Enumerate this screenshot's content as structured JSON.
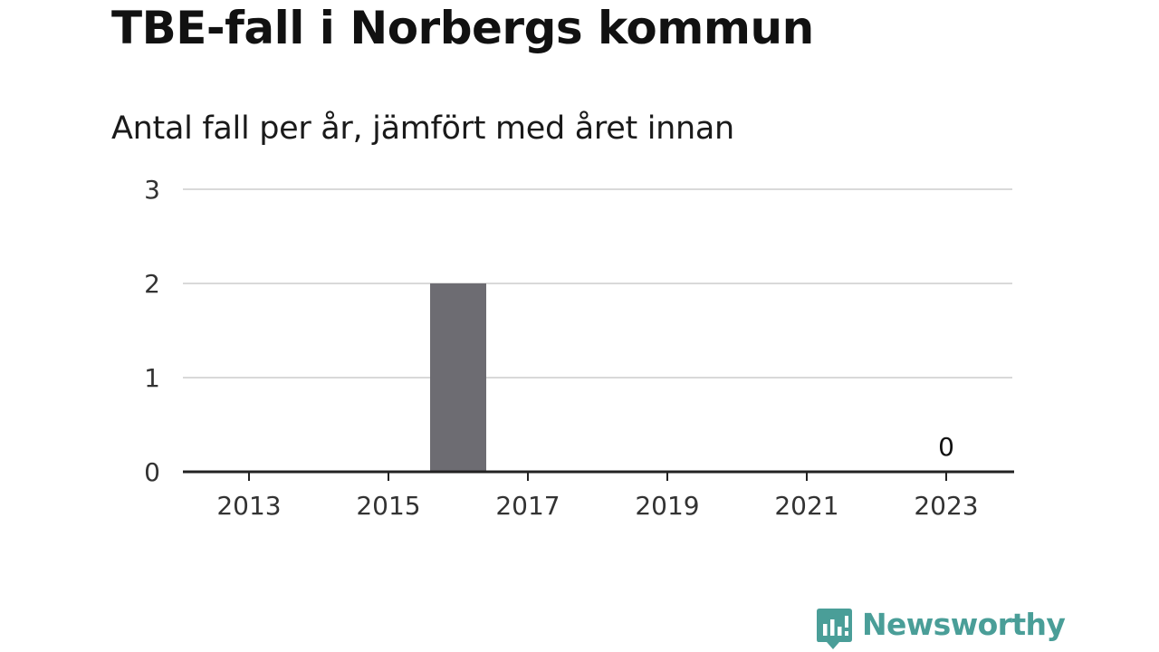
{
  "title": "TBE-fall i Norbergs kommun",
  "subtitle": "Antal fall per år, jämfört med året innan",
  "brand": {
    "name": "Newsworthy",
    "color": "#4a9e98",
    "icon": "newsworthy-logo-icon"
  },
  "colors": {
    "bar": "#6d6c72",
    "grid": "#d9d9d9",
    "axis": "#222222"
  },
  "chart_data": {
    "type": "bar",
    "categories": [
      "2013",
      "2014",
      "2015",
      "2016",
      "2017",
      "2018",
      "2019",
      "2020",
      "2021",
      "2022",
      "2023"
    ],
    "values": [
      0,
      0,
      0,
      2,
      0,
      0,
      0,
      0,
      0,
      0,
      0
    ],
    "x_tick_labels": [
      "2013",
      "2015",
      "2017",
      "2019",
      "2021",
      "2023"
    ],
    "y_ticks": [
      0,
      1,
      2,
      3
    ],
    "ylim": [
      0,
      3
    ],
    "data_labels": [
      {
        "category": "2023",
        "text": "0"
      }
    ],
    "grid": true,
    "xlabel": "",
    "ylabel": ""
  }
}
